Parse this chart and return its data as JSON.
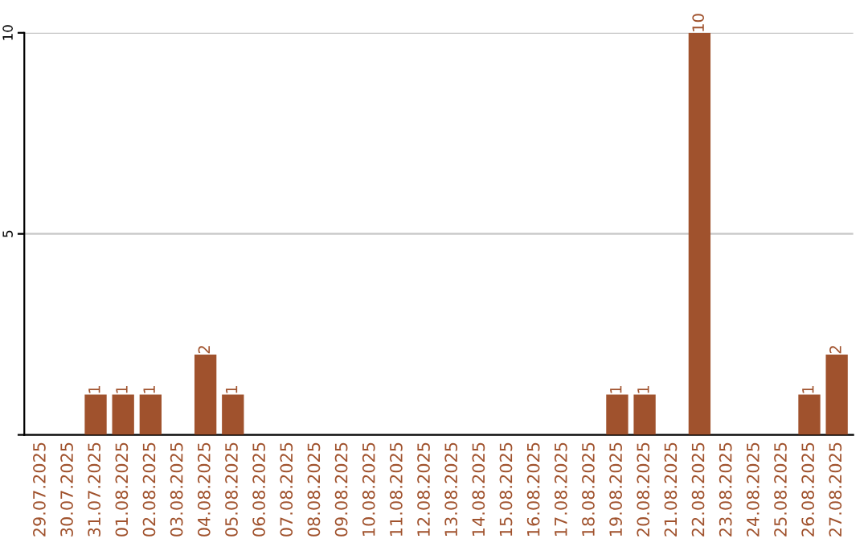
{
  "chart_data": {
    "type": "bar",
    "categories": [
      "29.07.2025",
      "30.07.2025",
      "31.07.2025",
      "01.08.2025",
      "02.08.2025",
      "03.08.2025",
      "04.08.2025",
      "05.08.2025",
      "06.08.2025",
      "07.08.2025",
      "08.08.2025",
      "09.08.2025",
      "10.08.2025",
      "11.08.2025",
      "12.08.2025",
      "13.08.2025",
      "14.08.2025",
      "15.08.2025",
      "16.08.2025",
      "17.08.2025",
      "18.08.2025",
      "19.08.2025",
      "20.08.2025",
      "21.08.2025",
      "22.08.2025",
      "23.08.2025",
      "24.08.2025",
      "25.08.2025",
      "26.08.2025",
      "27.08.2025"
    ],
    "values": [
      0,
      0,
      1,
      1,
      1,
      0,
      2,
      1,
      0,
      0,
      0,
      0,
      0,
      0,
      0,
      0,
      0,
      0,
      0,
      0,
      0,
      1,
      1,
      0,
      10,
      0,
      0,
      0,
      1,
      2
    ],
    "value_labels": [
      null,
      null,
      "1",
      "1",
      "1",
      null,
      "2",
      "1",
      null,
      null,
      null,
      null,
      null,
      null,
      null,
      null,
      null,
      null,
      null,
      null,
      null,
      "1",
      "1",
      null,
      "10",
      null,
      null,
      null,
      "1",
      "2"
    ],
    "color": "#a0522d",
    "ylim": [
      0,
      10
    ],
    "yticks": [
      {
        "value": 0,
        "label": null
      },
      5,
      10
    ],
    "grid": "y"
  }
}
